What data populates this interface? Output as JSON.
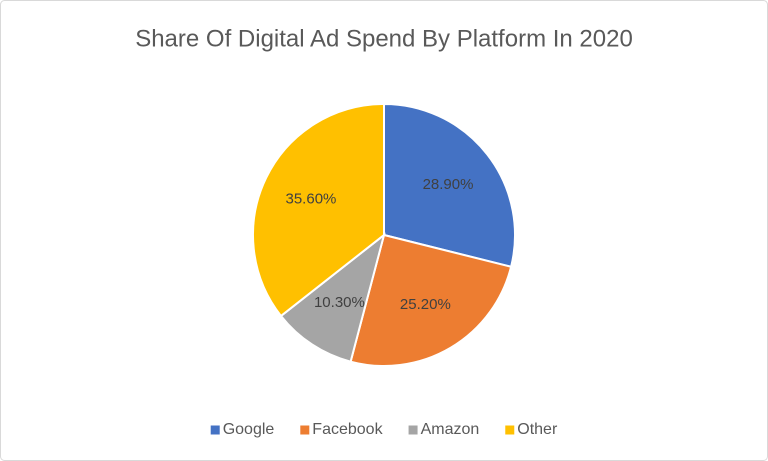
{
  "chart_data": {
    "type": "pie",
    "title": "Share Of Digital Ad Spend By Platform In 2020",
    "categories": [
      "Google",
      "Facebook",
      "Amazon",
      "Other"
    ],
    "values": [
      28.9,
      25.2,
      10.3,
      35.6
    ],
    "value_labels": [
      "28.90%",
      "25.20%",
      "10.30%",
      "35.60%"
    ],
    "colors": [
      "#4472c4",
      "#ed7d31",
      "#a5a5a5",
      "#ffc000"
    ],
    "legend": "bottom"
  }
}
